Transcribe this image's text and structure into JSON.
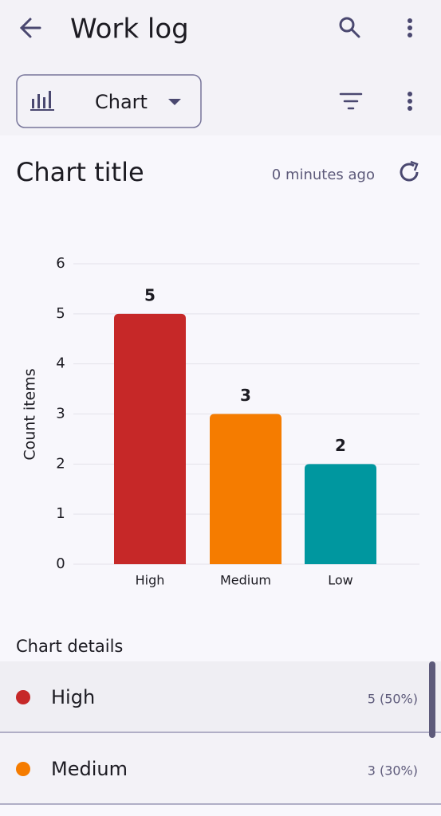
{
  "app_bar": {
    "title": "Work log"
  },
  "toolbar": {
    "view_selector": "Chart"
  },
  "chart_header": {
    "title": "Chart title",
    "updated": "0 minutes ago"
  },
  "chart_data": {
    "type": "bar",
    "y_label": "Count items",
    "categories": [
      "High",
      "Medium",
      "Low"
    ],
    "values": [
      5,
      3,
      2
    ],
    "colors": [
      "#c62828",
      "#f57c00",
      "#00979f"
    ],
    "ylim": [
      0,
      6
    ],
    "yticks": [
      0,
      1,
      2,
      3,
      4,
      5,
      6
    ],
    "grid": true
  },
  "details": {
    "title": "Chart details",
    "items": [
      {
        "label": "High",
        "value": "5 (50%)"
      },
      {
        "label": "Medium",
        "value": "3 (30%)"
      }
    ]
  }
}
